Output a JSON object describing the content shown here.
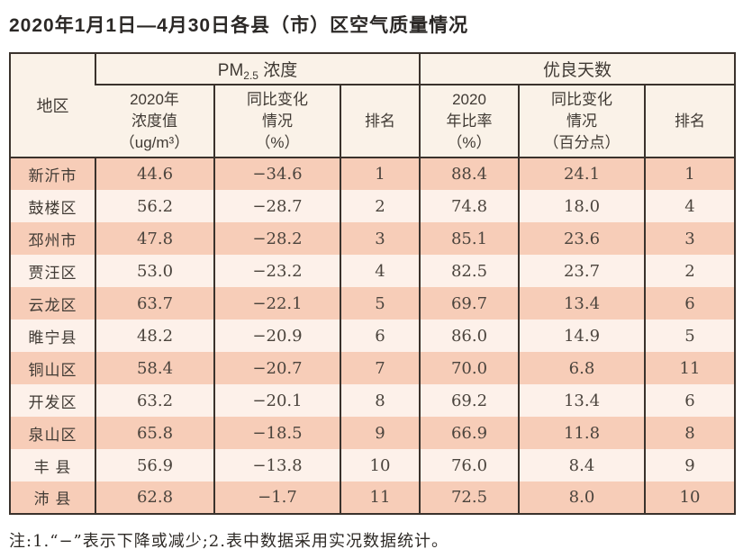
{
  "title": "2020年1月1日—4月30日各县（市）区空气质量情况",
  "table": {
    "header": {
      "region_label": "地区",
      "pm_group_prefix": "PM",
      "pm_group_sub": "2.5",
      "pm_group_suffix": " 浓度",
      "good_group_label": "优良天数",
      "pm_value_label": "2020年\n浓度值\n（ug/m³）",
      "pm_change_label": "同比变化\n情况\n（%）",
      "pm_rank_label": "排名",
      "good_ratio_label": "2020\n年比率\n（%）",
      "good_change_label": "同比变化\n情况\n（百分点）",
      "good_rank_label": "排名"
    },
    "rows": [
      {
        "region": "新沂市",
        "pm_value": "44.6",
        "pm_change": "−34.6",
        "pm_rank": "1",
        "good_ratio": "88.4",
        "good_change": "24.1",
        "good_rank": "1"
      },
      {
        "region": "鼓楼区",
        "pm_value": "56.2",
        "pm_change": "−28.7",
        "pm_rank": "2",
        "good_ratio": "74.8",
        "good_change": "18.0",
        "good_rank": "4"
      },
      {
        "region": "邳州市",
        "pm_value": "47.8",
        "pm_change": "−28.2",
        "pm_rank": "3",
        "good_ratio": "85.1",
        "good_change": "23.6",
        "good_rank": "3"
      },
      {
        "region": "贾汪区",
        "pm_value": "53.0",
        "pm_change": "−23.2",
        "pm_rank": "4",
        "good_ratio": "82.5",
        "good_change": "23.7",
        "good_rank": "2"
      },
      {
        "region": "云龙区",
        "pm_value": "63.7",
        "pm_change": "−22.1",
        "pm_rank": "5",
        "good_ratio": "69.7",
        "good_change": "13.4",
        "good_rank": "6"
      },
      {
        "region": "睢宁县",
        "pm_value": "48.2",
        "pm_change": "−20.9",
        "pm_rank": "6",
        "good_ratio": "86.0",
        "good_change": "14.9",
        "good_rank": "5"
      },
      {
        "region": "铜山区",
        "pm_value": "58.4",
        "pm_change": "−20.7",
        "pm_rank": "7",
        "good_ratio": "70.0",
        "good_change": "6.8",
        "good_rank": "11"
      },
      {
        "region": "开发区",
        "pm_value": "63.2",
        "pm_change": "−20.1",
        "pm_rank": "8",
        "good_ratio": "69.2",
        "good_change": "13.4",
        "good_rank": "6"
      },
      {
        "region": "泉山区",
        "pm_value": "65.8",
        "pm_change": "−18.5",
        "pm_rank": "9",
        "good_ratio": "66.9",
        "good_change": "11.8",
        "good_rank": "8"
      },
      {
        "region": "丰 县",
        "pm_value": "56.9",
        "pm_change": "−13.8",
        "pm_rank": "10",
        "good_ratio": "76.0",
        "good_change": "8.4",
        "good_rank": "9"
      },
      {
        "region": "沛 县",
        "pm_value": "62.8",
        "pm_change": "−1.7",
        "pm_rank": "11",
        "good_ratio": "72.5",
        "good_change": "8.0",
        "good_rank": "10"
      }
    ]
  },
  "note": "注:1.“−”表示下降或减少;2.表中数据采用实况数据统计。",
  "colors": {
    "border": "#3a322c",
    "row_dark": "#f7cdb8",
    "row_light": "#fdf1ea",
    "header_bg": "#faf2e8",
    "text_dark": "#403a34",
    "text_num": "#4b443d",
    "title_color": "#2b2826"
  }
}
